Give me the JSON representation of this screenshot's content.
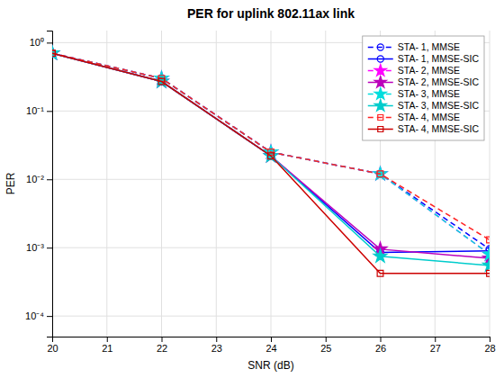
{
  "chart_data": {
    "type": "line",
    "title": "PER for uplink 802.11ax link",
    "x_label": "SNR (dB)",
    "y_label": "PER",
    "x": [
      20,
      22,
      24,
      26,
      28
    ],
    "series": [
      {
        "name": "STA- 1, MMSE",
        "color": "#0000FF",
        "line_style": "dashed",
        "marker": "circle",
        "values": [
          0.7,
          0.3,
          0.025,
          0.012,
          0.00095
        ]
      },
      {
        "name": "STA- 1, MMSE-SIC",
        "color": "#0000FF",
        "line_style": "solid",
        "marker": "circle",
        "values": [
          0.7,
          0.27,
          0.022,
          0.00085,
          0.0009
        ]
      },
      {
        "name": "STA- 2, MMSE",
        "color": "#FF00FF",
        "line_style": "dashed",
        "marker": "star",
        "values": [
          0.7,
          0.3,
          0.025,
          0.012,
          0.0008
        ]
      },
      {
        "name": "STA- 2, MMSE-SIC",
        "color": "#BB00BB",
        "line_style": "solid",
        "marker": "star",
        "values": [
          0.7,
          0.27,
          0.022,
          0.00095,
          0.0007
        ]
      },
      {
        "name": "STA- 3, MMSE",
        "color": "#00DDDD",
        "line_style": "dashed",
        "marker": "star",
        "values": [
          0.7,
          0.3,
          0.025,
          0.012,
          0.0008
        ]
      },
      {
        "name": "STA- 3, MMSE-SIC",
        "color": "#00CCCC",
        "line_style": "solid",
        "marker": "star",
        "values": [
          0.7,
          0.27,
          0.022,
          0.00075,
          0.00055
        ]
      },
      {
        "name": "STA- 4, MMSE",
        "color": "#FF2222",
        "line_style": "dashed",
        "marker": "square",
        "values": [
          0.7,
          0.3,
          0.025,
          0.012,
          0.0013
        ]
      },
      {
        "name": "STA- 4, MMSE-SIC",
        "color": "#CC0000",
        "line_style": "solid",
        "marker": "square",
        "values": [
          0.7,
          0.27,
          0.022,
          0.00042,
          0.00042
        ]
      }
    ],
    "xlim": [
      20,
      28
    ],
    "ylim": [
      5e-05,
      1.5
    ],
    "xticks": [
      20,
      21,
      22,
      23,
      24,
      25,
      26,
      27,
      28
    ],
    "yticks": [
      {
        "value": 0.0001,
        "label": "10⁻⁴"
      },
      {
        "value": 0.001,
        "label": "10⁻³"
      },
      {
        "value": 0.01,
        "label": "10⁻²"
      },
      {
        "value": 0.1,
        "label": "10⁻¹"
      },
      {
        "value": 1,
        "label": "10⁰"
      }
    ],
    "log": "y",
    "grid": true,
    "legend": "upper right"
  }
}
